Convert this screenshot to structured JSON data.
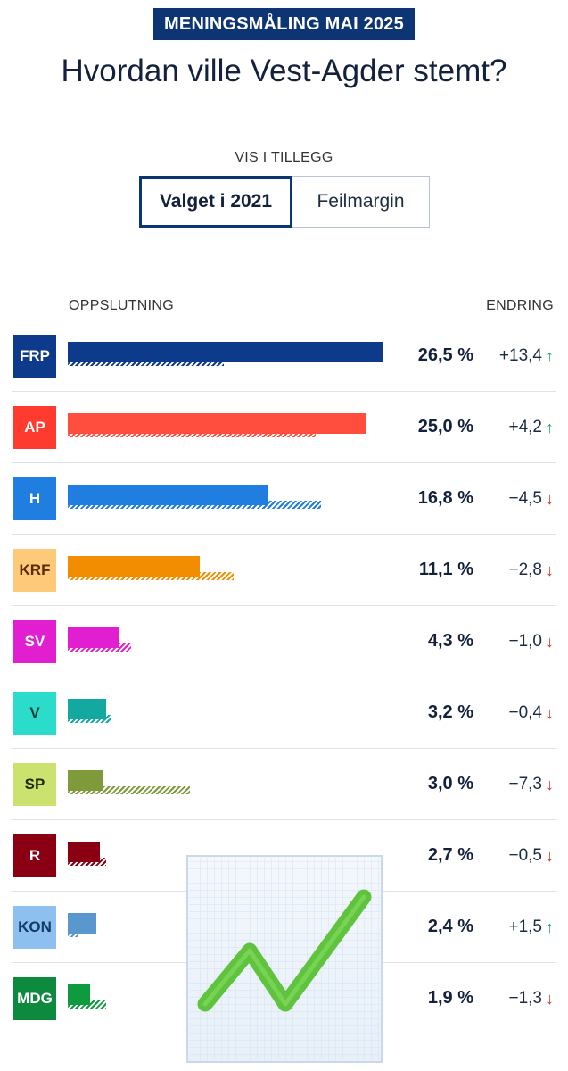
{
  "header": {
    "kicker": "MENINGSMÅLING MAI 2025",
    "title": "Hvordan ville Vest-Agder stemt?"
  },
  "controls": {
    "label": "VIS I TILLEGG",
    "options": [
      "Valget i 2021",
      "Feilmargin"
    ],
    "selected": "Valget i 2021"
  },
  "table_headers": {
    "left": "OPPSLUTNING",
    "right": "ENDRING"
  },
  "overlay_icon": "chart-increasing-icon",
  "chart_data": {
    "type": "bar",
    "orientation": "horizontal",
    "unit": "%",
    "xlim": [
      0,
      27.5
    ],
    "categories": [
      "FRP",
      "AP",
      "H",
      "KRF",
      "SV",
      "V",
      "SP",
      "R",
      "KON",
      "MDG"
    ],
    "series": [
      {
        "name": "Mai 2025",
        "values": [
          26.5,
          25.0,
          16.8,
          11.1,
          4.3,
          3.2,
          3.0,
          2.7,
          2.4,
          1.9
        ],
        "labels": [
          "26,5 %",
          "25,0 %",
          "16,8 %",
          "11,1 %",
          "4,3 %",
          "3,2 %",
          "3,0 %",
          "2,7 %",
          "2,4 %",
          "1,9 %"
        ]
      },
      {
        "name": "Valget i 2021",
        "values": [
          13.1,
          20.8,
          21.3,
          13.9,
          5.3,
          3.6,
          10.3,
          3.2,
          0.9,
          3.2
        ]
      }
    ],
    "change": {
      "labels": [
        "+13,4",
        "+4,2",
        "−4,5",
        "−2,8",
        "−1,0",
        "−0,4",
        "−7,3",
        "−0,5",
        "+1,5",
        "−1,3"
      ],
      "direction": [
        "up",
        "up",
        "down",
        "down",
        "down",
        "down",
        "down",
        "down",
        "up",
        "down"
      ]
    },
    "colors": [
      "#0d3a8a",
      "#ff4d3e",
      "#1f7ee0",
      "#f28c00",
      "#e11fd1",
      "#13a8a0",
      "#7e9a3a",
      "#8a0012",
      "#5b97cf",
      "#0e9a3e"
    ],
    "badge_backgrounds": [
      "#0d3a8a",
      "#ff3b30",
      "#1f7ee0",
      "#ffc97a",
      "#e11fd1",
      "#2cdcca",
      "#cce26e",
      "#8a0012",
      "#8ec0ef",
      "#0e8a3e"
    ],
    "badge_text_colors": [
      "#ffffff",
      "#ffffff",
      "#ffffff",
      "#5a2a00",
      "#ffffff",
      "#0b3b38",
      "#1c2a0a",
      "#ffffff",
      "#123a66",
      "#ffffff"
    ]
  }
}
